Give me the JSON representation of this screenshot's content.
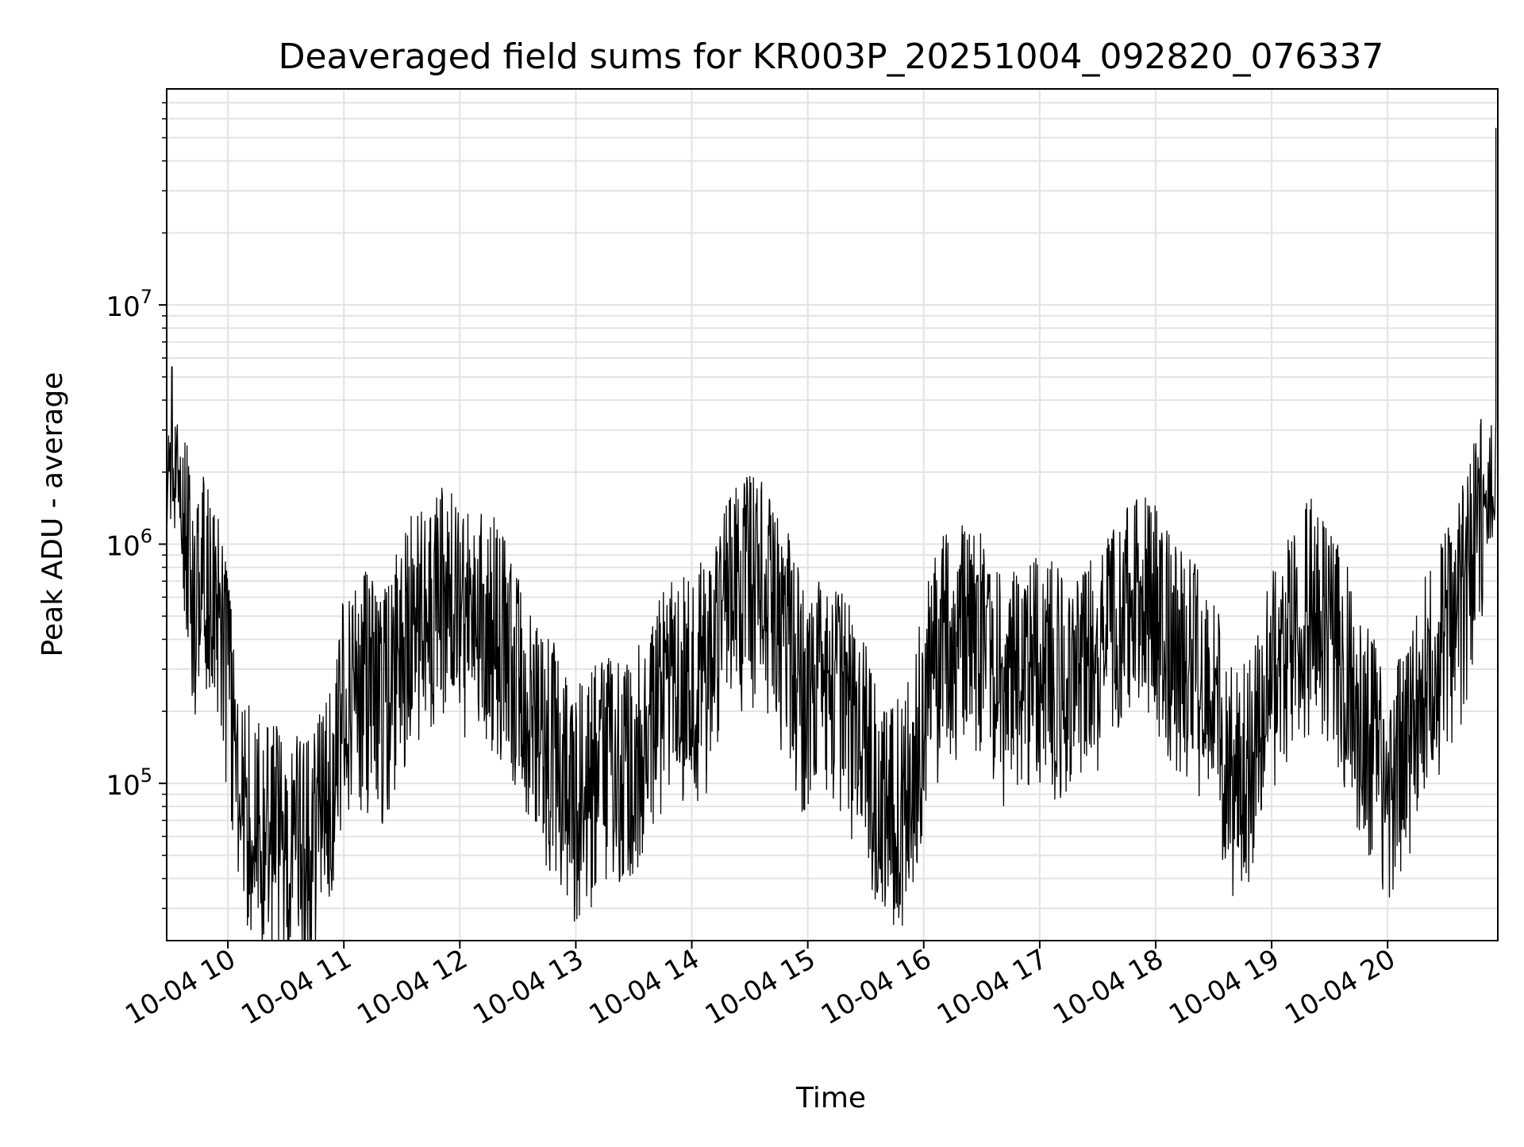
{
  "chart_data": {
    "type": "line",
    "title": "Deaveraged field sums for KR003P_20251004_092820_076337",
    "xlabel": "Time",
    "ylabel": "Peak ADU - average",
    "yscale": "log",
    "grid": true,
    "line_color": "#000000",
    "xlim": [
      "2025-10-04 09:28:20",
      "2025-10-04 20:57:00"
    ],
    "ylim": [
      22000,
      80000000
    ],
    "x_ticks": [
      {
        "value": "2025-10-04 10:00",
        "label": "10-04 10"
      },
      {
        "value": "2025-10-04 11:00",
        "label": "10-04 11"
      },
      {
        "value": "2025-10-04 12:00",
        "label": "10-04 12"
      },
      {
        "value": "2025-10-04 13:00",
        "label": "10-04 13"
      },
      {
        "value": "2025-10-04 14:00",
        "label": "10-04 14"
      },
      {
        "value": "2025-10-04 15:00",
        "label": "10-04 15"
      },
      {
        "value": "2025-10-04 16:00",
        "label": "10-04 16"
      },
      {
        "value": "2025-10-04 17:00",
        "label": "10-04 17"
      },
      {
        "value": "2025-10-04 18:00",
        "label": "10-04 18"
      },
      {
        "value": "2025-10-04 19:00",
        "label": "10-04 19"
      },
      {
        "value": "2025-10-04 20:00",
        "label": "10-04 20"
      }
    ],
    "y_ticks": [
      {
        "value": 100000,
        "base": "10",
        "exp": "5"
      },
      {
        "value": 1000000,
        "base": "10",
        "exp": "6"
      },
      {
        "value": 10000000,
        "base": "10",
        "exp": "7"
      }
    ],
    "series": [
      {
        "x": [
          "2025-10-04 09:28",
          "2025-10-04 09:32",
          "2025-10-04 09:36",
          "2025-10-04 09:40",
          "2025-10-04 09:44",
          "2025-10-04 09:48",
          "2025-10-04 09:52",
          "2025-10-04 09:56",
          "2025-10-04 10:00",
          "2025-10-04 10:05",
          "2025-10-04 10:10",
          "2025-10-04 10:15",
          "2025-10-04 10:20",
          "2025-10-04 10:25",
          "2025-10-04 10:30",
          "2025-10-04 10:35",
          "2025-10-04 10:40",
          "2025-10-04 10:45",
          "2025-10-04 10:50",
          "2025-10-04 10:55",
          "2025-10-04 11:00",
          "2025-10-04 11:10",
          "2025-10-04 11:20",
          "2025-10-04 11:30",
          "2025-10-04 11:40",
          "2025-10-04 11:50",
          "2025-10-04 12:00",
          "2025-10-04 12:10",
          "2025-10-04 12:20",
          "2025-10-04 12:30",
          "2025-10-04 12:40",
          "2025-10-04 12:50",
          "2025-10-04 13:00",
          "2025-10-04 13:10",
          "2025-10-04 13:20",
          "2025-10-04 13:30",
          "2025-10-04 13:40",
          "2025-10-04 13:50",
          "2025-10-04 14:00",
          "2025-10-04 14:10",
          "2025-10-04 14:20",
          "2025-10-04 14:30",
          "2025-10-04 14:40",
          "2025-10-04 14:50",
          "2025-10-04 15:00",
          "2025-10-04 15:10",
          "2025-10-04 15:20",
          "2025-10-04 15:30",
          "2025-10-04 15:40",
          "2025-10-04 15:50",
          "2025-10-04 16:00",
          "2025-10-04 16:10",
          "2025-10-04 16:20",
          "2025-10-04 16:30",
          "2025-10-04 16:40",
          "2025-10-04 16:50",
          "2025-10-04 17:00",
          "2025-10-04 17:10",
          "2025-10-04 17:20",
          "2025-10-04 17:30",
          "2025-10-04 17:40",
          "2025-10-04 17:50",
          "2025-10-04 18:00",
          "2025-10-04 18:10",
          "2025-10-04 18:20",
          "2025-10-04 18:30",
          "2025-10-04 18:40",
          "2025-10-04 18:50",
          "2025-10-04 19:00",
          "2025-10-04 19:10",
          "2025-10-04 19:20",
          "2025-10-04 19:30",
          "2025-10-04 19:40",
          "2025-10-04 19:50",
          "2025-10-04 20:00",
          "2025-10-04 20:10",
          "2025-10-04 20:20",
          "2025-10-04 20:30",
          "2025-10-04 20:40",
          "2025-10-04 20:50",
          "2025-10-04 20:56"
        ],
        "y": [
          2200000,
          1900000,
          1700000,
          700000,
          500000,
          650000,
          550000,
          400000,
          250000,
          120000,
          75000,
          65000,
          60000,
          62000,
          60000,
          55000,
          52000,
          58000,
          70000,
          100000,
          200000,
          250000,
          200000,
          350000,
          500000,
          550000,
          500000,
          450000,
          400000,
          250000,
          150000,
          120000,
          80000,
          100000,
          120000,
          120000,
          200000,
          250000,
          250000,
          300000,
          600000,
          650000,
          550000,
          350000,
          200000,
          250000,
          200000,
          120000,
          70000,
          80000,
          200000,
          350000,
          400000,
          380000,
          250000,
          250000,
          300000,
          260000,
          250000,
          300000,
          400000,
          550000,
          500000,
          350000,
          300000,
          200000,
          100000,
          120000,
          250000,
          400000,
          500000,
          400000,
          250000,
          150000,
          100000,
          120000,
          250000,
          400000,
          600000,
          1500000,
          2000000
        ]
      }
    ]
  }
}
